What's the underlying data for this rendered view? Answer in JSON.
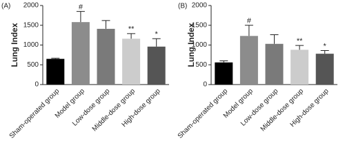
{
  "chart_data": [
    {
      "type": "bar",
      "panel": "(A)",
      "ylabel": "Lung Index",
      "categories": [
        "Sham-operated group",
        "Model group",
        "Low-dose group",
        "Middle-dose group",
        "High-dose group"
      ],
      "values": [
        650,
        1580,
        1410,
        1160,
        960
      ],
      "errors": [
        15,
        270,
        210,
        130,
        200
      ],
      "annotations": [
        null,
        "#",
        null,
        "**",
        "*"
      ],
      "colors": [
        "#000000",
        "#8c8c8c",
        "#7a7a7a",
        "#cccccc",
        "#555555"
      ],
      "ylim": [
        0,
        2000
      ],
      "yticks": [
        0,
        500,
        1000,
        1500,
        2000
      ]
    },
    {
      "type": "bar",
      "panel": "(B)",
      "ylabel": "Lung Index",
      "categories": [
        "Sham-operated group",
        "Model group",
        "Low-dose group",
        "Middle-dose group",
        "High-dose group"
      ],
      "values": [
        560,
        1230,
        1030,
        880,
        780
      ],
      "errors": [
        40,
        270,
        230,
        110,
        80
      ],
      "annotations": [
        null,
        "#",
        null,
        "**",
        "*"
      ],
      "colors": [
        "#000000",
        "#8c8c8c",
        "#7a7a7a",
        "#cccccc",
        "#555555"
      ],
      "ylim": [
        0,
        2000
      ],
      "yticks": [
        0,
        500,
        1000,
        1500,
        2000
      ]
    }
  ]
}
